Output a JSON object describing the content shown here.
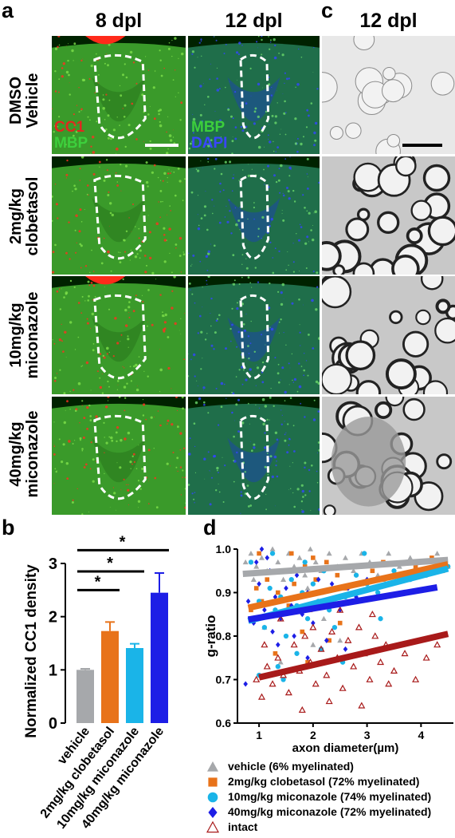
{
  "panels": {
    "a": "a",
    "b": "b",
    "c": "c",
    "d": "d"
  },
  "headers": {
    "col1": "8 dpl",
    "col2": "12 dpl",
    "col3": "12 dpl"
  },
  "rows": [
    {
      "line1": "DMSO",
      "line2": "Vehicle"
    },
    {
      "line1": "2mg/kg",
      "line2": "clobetasol"
    },
    {
      "line1": "10mg/kg",
      "line2": "miconazole"
    },
    {
      "line1": "40mg/kg",
      "line2": "miconazole"
    }
  ],
  "stains": {
    "cc1": "CC1",
    "mbp1": "MBP",
    "mbp2": "MBP",
    "dapi": "DAPI"
  },
  "colors": {
    "red": "#e0281f",
    "green": "#2fb52f",
    "blue": "#2a36d8",
    "vehicle": "#a6a8ab",
    "clobetasol": "#e8731a",
    "mic10": "#1ab4e8",
    "mic40": "#1d1ee6",
    "intact": "#a81a1a"
  },
  "chart_data": [
    {
      "type": "bar",
      "panel": "b",
      "ylabel": "Normalized CC1 density",
      "categories": [
        "vehicle",
        "2mg/kg clobetasol",
        "10mg/kg miconazole",
        "40mg/kg miconazole"
      ],
      "values": [
        1.0,
        1.73,
        1.41,
        2.45
      ],
      "errors": [
        0.02,
        0.17,
        0.08,
        0.37
      ],
      "ylim": [
        0,
        3
      ],
      "yticks": [
        "0",
        "1",
        "2",
        "3"
      ],
      "significance": [
        {
          "from": 0,
          "to": 1,
          "label": "*"
        },
        {
          "from": 0,
          "to": 2,
          "label": "*"
        },
        {
          "from": 0,
          "to": 3,
          "label": "*"
        }
      ]
    },
    {
      "type": "scatter",
      "panel": "d",
      "xlabel": "axon diameter(µm)",
      "ylabel": "g-ratio",
      "xlim": [
        0.6,
        4.6
      ],
      "ylim": [
        0.6,
        1.0
      ],
      "xticks": [
        "1",
        "2",
        "3",
        "4"
      ],
      "yticks": [
        "0.6",
        "0.7",
        "0.8",
        "0.9",
        "1.0"
      ],
      "series": [
        {
          "name": "vehicle (6% myelinated)",
          "marker": "triangle-filled",
          "fit": [
            [
              0.7,
              0.943
            ],
            [
              4.5,
              0.975
            ]
          ],
          "points": [
            [
              0.75,
              0.97
            ],
            [
              0.85,
              0.99
            ],
            [
              0.95,
              0.96
            ],
            [
              1.05,
              0.98
            ],
            [
              1.15,
              0.95
            ],
            [
              1.25,
              1.0
            ],
            [
              1.35,
              0.97
            ],
            [
              1.45,
              0.93
            ],
            [
              1.55,
              0.99
            ],
            [
              1.65,
              0.96
            ],
            [
              1.75,
              0.98
            ],
            [
              1.85,
              0.94
            ],
            [
              1.95,
              1.0
            ],
            [
              2.05,
              0.97
            ],
            [
              2.15,
              0.95
            ],
            [
              2.3,
              0.99
            ],
            [
              2.45,
              0.96
            ],
            [
              2.6,
              0.98
            ],
            [
              2.75,
              0.95
            ],
            [
              2.9,
              0.99
            ],
            [
              3.05,
              0.97
            ],
            [
              3.2,
              0.94
            ],
            [
              3.4,
              0.99
            ],
            [
              3.6,
              0.96
            ],
            [
              3.8,
              0.98
            ],
            [
              4.0,
              0.97
            ],
            [
              4.3,
              0.99
            ],
            [
              4.5,
              0.96
            ],
            [
              1.1,
              0.82
            ],
            [
              1.6,
              0.86
            ],
            [
              2.2,
              0.84
            ],
            [
              2.5,
              0.79
            ],
            [
              1.4,
              0.74
            ],
            [
              2.8,
              0.88
            ],
            [
              1.9,
              0.91
            ],
            [
              0.9,
              0.93
            ],
            [
              3.3,
              0.93
            ],
            [
              2.0,
              0.78
            ]
          ]
        },
        {
          "name": "2mg/kg clobetasol (72% myelinated)",
          "marker": "square",
          "fit": [
            [
              0.8,
              0.865
            ],
            [
              4.5,
              0.965
            ]
          ],
          "points": [
            [
              0.85,
              0.86
            ],
            [
              0.95,
              0.91
            ],
            [
              1.05,
              0.88
            ],
            [
              1.15,
              0.93
            ],
            [
              1.25,
              0.85
            ],
            [
              1.35,
              0.9
            ],
            [
              1.45,
              0.95
            ],
            [
              1.55,
              0.87
            ],
            [
              1.65,
              0.92
            ],
            [
              1.75,
              0.89
            ],
            [
              1.85,
              0.96
            ],
            [
              1.95,
              0.86
            ],
            [
              2.05,
              0.93
            ],
            [
              2.15,
              0.9
            ],
            [
              2.25,
              0.97
            ],
            [
              2.35,
              0.88
            ],
            [
              2.45,
              0.94
            ],
            [
              2.6,
              0.91
            ],
            [
              2.75,
              0.96
            ],
            [
              2.9,
              0.92
            ],
            [
              3.1,
              0.95
            ],
            [
              3.3,
              0.97
            ],
            [
              3.6,
              0.94
            ],
            [
              3.9,
              0.96
            ],
            [
              4.2,
              0.98
            ],
            [
              4.4,
              0.95
            ],
            [
              1.3,
              0.76
            ],
            [
              1.8,
              0.81
            ],
            [
              2.3,
              0.79
            ],
            [
              1.6,
              0.99
            ],
            [
              2.0,
              0.98
            ],
            [
              1.0,
              0.99
            ],
            [
              2.5,
              0.83
            ],
            [
              1.9,
              0.74
            ]
          ]
        },
        {
          "name": "10mg/kg miconazole (74% myelinated)",
          "marker": "circle",
          "fit": [
            [
              0.8,
              0.835
            ],
            [
              4.5,
              0.955
            ]
          ],
          "points": [
            [
              0.9,
              0.84
            ],
            [
              1.0,
              0.88
            ],
            [
              1.1,
              0.82
            ],
            [
              1.2,
              0.91
            ],
            [
              1.3,
              0.86
            ],
            [
              1.4,
              0.89
            ],
            [
              1.5,
              0.8
            ],
            [
              1.6,
              0.93
            ],
            [
              1.7,
              0.87
            ],
            [
              1.8,
              0.9
            ],
            [
              1.9,
              0.84
            ],
            [
              2.0,
              0.92
            ],
            [
              2.1,
              0.88
            ],
            [
              2.2,
              0.95
            ],
            [
              2.3,
              0.86
            ],
            [
              2.45,
              0.91
            ],
            [
              2.6,
              0.89
            ],
            [
              2.8,
              0.94
            ],
            [
              3.0,
              0.92
            ],
            [
              3.2,
              0.9
            ],
            [
              3.5,
              0.95
            ],
            [
              3.8,
              0.93
            ],
            [
              4.1,
              0.94
            ],
            [
              4.5,
              0.96
            ],
            [
              2.95,
              0.99
            ],
            [
              1.0,
              0.71
            ],
            [
              1.45,
              0.7
            ],
            [
              1.7,
              0.76
            ],
            [
              2.15,
              0.77
            ],
            [
              2.55,
              0.74
            ],
            [
              3.25,
              0.84
            ],
            [
              0.85,
              0.97
            ],
            [
              1.25,
              0.99
            ],
            [
              1.85,
              0.97
            ],
            [
              2.4,
              0.82
            ],
            [
              1.35,
              0.73
            ]
          ]
        },
        {
          "name": "40mg/kg miconazole (72% myelinated)",
          "marker": "diamond",
          "fit": [
            [
              0.8,
              0.838
            ],
            [
              4.3,
              0.912
            ]
          ],
          "points": [
            [
              0.8,
              0.88
            ],
            [
              0.9,
              0.83
            ],
            [
              1.0,
              0.92
            ],
            [
              1.1,
              0.86
            ],
            [
              1.2,
              0.95
            ],
            [
              1.3,
              0.89
            ],
            [
              1.4,
              0.84
            ],
            [
              1.5,
              0.91
            ],
            [
              1.6,
              0.87
            ],
            [
              1.7,
              0.94
            ],
            [
              1.8,
              0.85
            ],
            [
              1.9,
              0.9
            ],
            [
              2.0,
              0.83
            ],
            [
              2.1,
              0.93
            ],
            [
              2.2,
              0.88
            ],
            [
              2.35,
              0.92
            ],
            [
              2.5,
              0.86
            ],
            [
              2.65,
              0.91
            ],
            [
              2.8,
              0.89
            ],
            [
              3.0,
              0.93
            ],
            [
              1.05,
              1.0
            ],
            [
              1.15,
              0.98
            ],
            [
              0.95,
              0.97
            ],
            [
              1.35,
              0.78
            ],
            [
              1.65,
              0.8
            ],
            [
              1.9,
              0.75
            ],
            [
              2.25,
              0.79
            ],
            [
              0.75,
              0.69
            ],
            [
              1.55,
              0.72
            ],
            [
              2.6,
              0.77
            ],
            [
              1.25,
              0.81
            ]
          ]
        },
        {
          "name": "intact",
          "marker": "triangle-open",
          "fit": [
            [
              1.0,
              0.705
            ],
            [
              4.5,
              0.805
            ]
          ],
          "points": [
            [
              0.95,
              0.7
            ],
            [
              1.05,
              0.66
            ],
            [
              1.15,
              0.73
            ],
            [
              1.25,
              0.69
            ],
            [
              1.35,
              0.75
            ],
            [
              1.45,
              0.71
            ],
            [
              1.55,
              0.67
            ],
            [
              1.65,
              0.78
            ],
            [
              1.75,
              0.72
            ],
            [
              1.85,
              0.8
            ],
            [
              1.95,
              0.74
            ],
            [
              2.05,
              0.69
            ],
            [
              2.15,
              0.77
            ],
            [
              2.25,
              0.71
            ],
            [
              2.35,
              0.81
            ],
            [
              2.45,
              0.75
            ],
            [
              2.55,
              0.68
            ],
            [
              2.65,
              0.79
            ],
            [
              2.75,
              0.73
            ],
            [
              2.85,
              0.82
            ],
            [
              2.95,
              0.76
            ],
            [
              3.05,
              0.7
            ],
            [
              3.15,
              0.8
            ],
            [
              3.25,
              0.74
            ],
            [
              3.35,
              0.78
            ],
            [
              3.5,
              0.72
            ],
            [
              3.7,
              0.76
            ],
            [
              3.9,
              0.7
            ],
            [
              4.1,
              0.75
            ],
            [
              4.3,
              0.78
            ],
            [
              1.8,
              0.63
            ],
            [
              2.3,
              0.65
            ],
            [
              2.9,
              0.64
            ],
            [
              3.1,
              0.85
            ],
            [
              1.4,
              0.84
            ],
            [
              2.5,
              0.86
            ],
            [
              2.0,
              0.82
            ],
            [
              1.1,
              0.78
            ],
            [
              3.4,
              0.69
            ]
          ]
        }
      ]
    }
  ]
}
